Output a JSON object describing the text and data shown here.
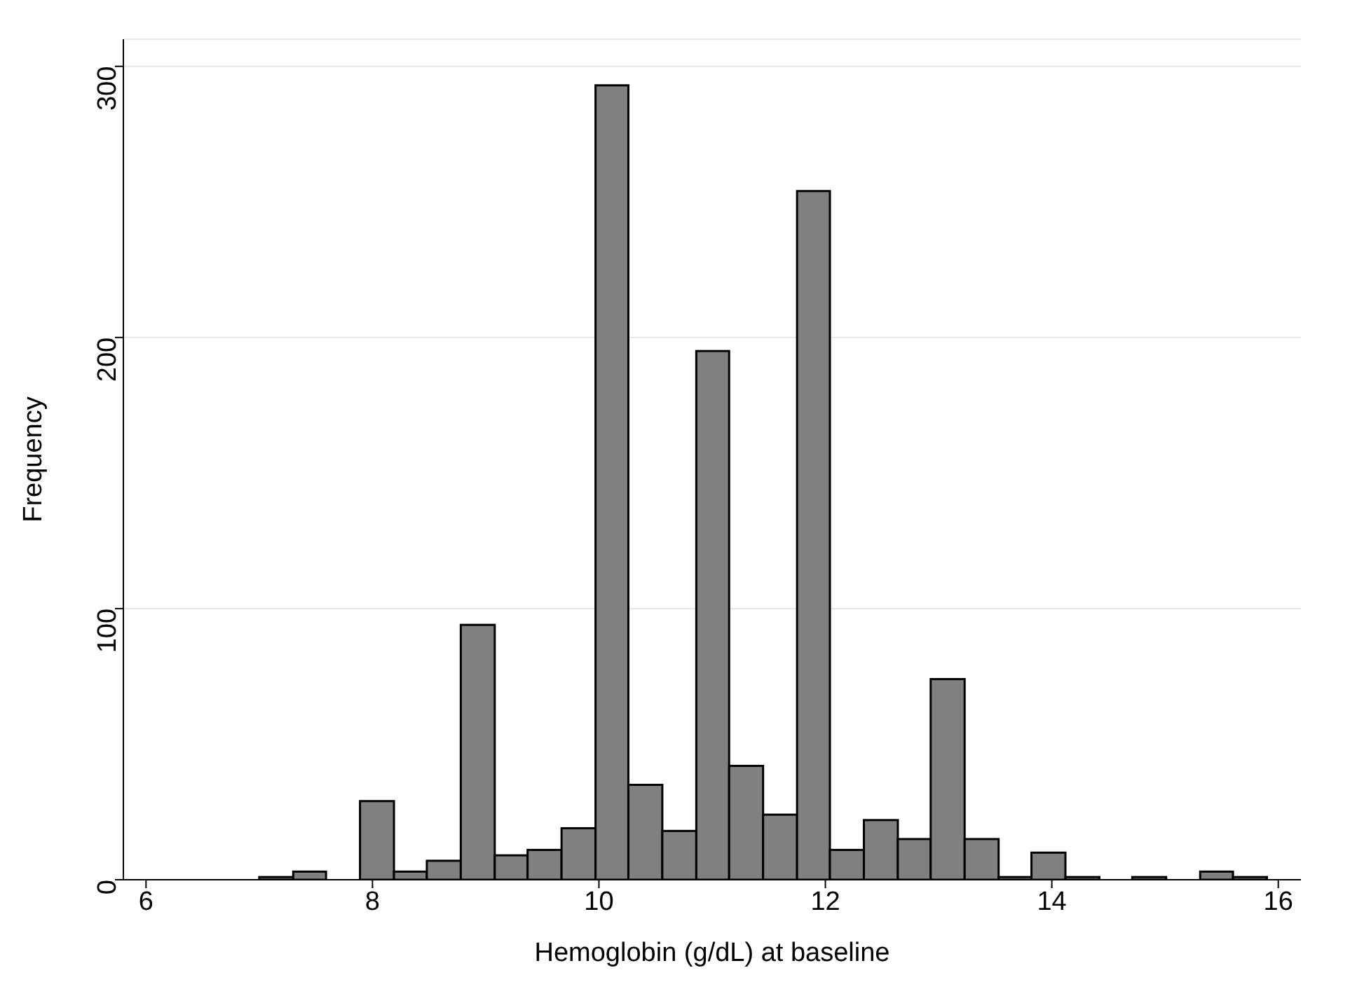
{
  "chart_data": {
    "type": "histogram",
    "xlabel": "Hemoglobin (g/dL) at baseline",
    "ylabel": "Frequency",
    "bins": [
      7.0,
      7.3,
      7.59,
      7.89,
      8.19,
      8.48,
      8.78,
      9.08,
      9.37,
      9.67,
      9.97,
      10.26,
      10.56,
      10.86,
      11.15,
      11.45,
      11.75,
      12.04,
      12.34,
      12.64,
      12.93,
      13.23,
      13.53,
      13.82,
      14.12,
      14.42,
      14.71,
      15.01,
      15.31,
      15.6,
      15.9
    ],
    "values": [
      1,
      3,
      0,
      29,
      3,
      7,
      94,
      9,
      11,
      19,
      293,
      35,
      18,
      195,
      42,
      24,
      254,
      11,
      22,
      15,
      74,
      15,
      1,
      10,
      1,
      0,
      1,
      0,
      3,
      1
    ],
    "color": "#808080",
    "xlim": [
      5.8,
      16.2
    ],
    "xticks": [
      6,
      8,
      10,
      12,
      14,
      16
    ],
    "ylim": [
      0,
      310
    ],
    "yticks": [
      0,
      100,
      200,
      300
    ],
    "grid": "y"
  }
}
